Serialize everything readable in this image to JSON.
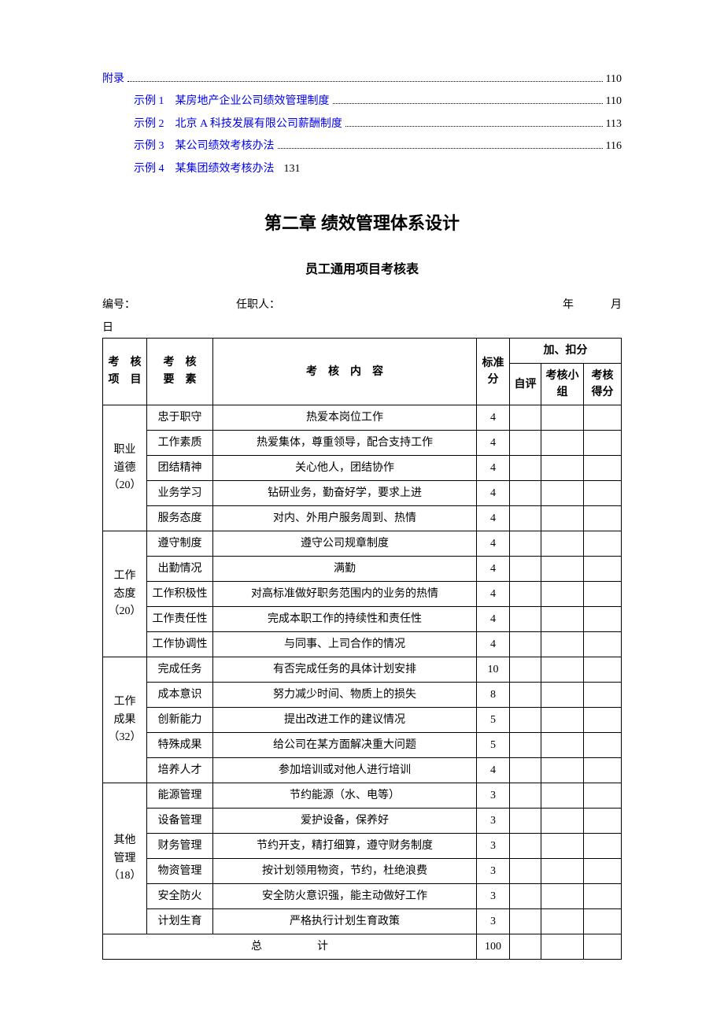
{
  "toc": {
    "items": [
      {
        "label": "附录",
        "page": "110",
        "indent": false,
        "hasDots": true
      },
      {
        "label": "示例 1　某房地产企业公司绩效管理制度",
        "page": "110",
        "indent": true,
        "hasDots": true
      },
      {
        "label": "示例 2　北京 A 科技发展有限公司薪酬制度",
        "page": "113",
        "indent": true,
        "hasDots": true
      },
      {
        "label": "示例 3　某公司绩效考核办法",
        "page": "116",
        "indent": true,
        "hasDots": true
      },
      {
        "label": "示例 4　某集团绩效考核办法",
        "page": "131",
        "indent": true,
        "hasDots": false
      }
    ]
  },
  "chapter_title": "第二章  绩效管理体系设计",
  "section_title": "员工通用项目考核表",
  "form_header": {
    "bh_label": "编号：",
    "rzr_label": "任职人：",
    "year_label": "年",
    "month_label": "月",
    "day_label": "日"
  },
  "table": {
    "headers": {
      "category": "考核项目",
      "element": "考核要素",
      "content": "考　核　内　容",
      "std_score": "标准分",
      "add_deduct": "加、扣分",
      "self": "自评",
      "group": "考核小组",
      "final": "考核得分"
    },
    "categories": [
      {
        "name": "职业道德（20）",
        "rows": [
          {
            "element": "忠于职守",
            "content": "热爱本岗位工作",
            "score": "4"
          },
          {
            "element": "工作素质",
            "content": "热爱集体，尊重领导，配合支持工作",
            "score": "4"
          },
          {
            "element": "团结精神",
            "content": "关心他人，团结协作",
            "score": "4"
          },
          {
            "element": "业务学习",
            "content": "钻研业务，勤奋好学，要求上进",
            "score": "4"
          },
          {
            "element": "服务态度",
            "content": "对内、外用户服务周到、热情",
            "score": "4"
          }
        ]
      },
      {
        "name": "工作态度（20）",
        "rows": [
          {
            "element": "遵守制度",
            "content": "遵守公司规章制度",
            "score": "4"
          },
          {
            "element": "出勤情况",
            "content": "满勤",
            "score": "4"
          },
          {
            "element": "工作积极性",
            "content": "对高标准做好职务范围内的业务的热情",
            "score": "4"
          },
          {
            "element": "工作责任性",
            "content": "完成本职工作的持续性和责任性",
            "score": "4"
          },
          {
            "element": "工作协调性",
            "content": "与同事、上司合作的情况",
            "score": "4"
          }
        ]
      },
      {
        "name": "工作成果（32）",
        "rows": [
          {
            "element": "完成任务",
            "content": "有否完成任务的具体计划安排",
            "score": "10"
          },
          {
            "element": "成本意识",
            "content": "努力减少时间、物质上的损失",
            "score": "8"
          },
          {
            "element": "创新能力",
            "content": "提出改进工作的建议情况",
            "score": "5"
          },
          {
            "element": "特殊成果",
            "content": "给公司在某方面解决重大问题",
            "score": "5"
          },
          {
            "element": "培养人才",
            "content": "参加培训或对他人进行培训",
            "score": "4"
          }
        ]
      },
      {
        "name": "其他管理（18）",
        "rows": [
          {
            "element": "能源管理",
            "content": "节约能源（水、电等）",
            "score": "3"
          },
          {
            "element": "设备管理",
            "content": "爱护设备，保养好",
            "score": "3"
          },
          {
            "element": "财务管理",
            "content": "节约开支，精打细算，遵守财务制度",
            "score": "3"
          },
          {
            "element": "物资管理",
            "content": "按计划领用物资，节约，杜绝浪费",
            "score": "3"
          },
          {
            "element": "安全防火",
            "content": "安全防火意识强，能主动做好工作",
            "score": "3"
          },
          {
            "element": "计划生育",
            "content": "严格执行计划生育政策",
            "score": "3"
          }
        ]
      }
    ],
    "total": {
      "label": "总　　　计",
      "score": "100"
    }
  },
  "colors": {
    "link_color": "#0000ee",
    "text_color": "#000000",
    "border_color": "#000000",
    "background": "#ffffff"
  }
}
